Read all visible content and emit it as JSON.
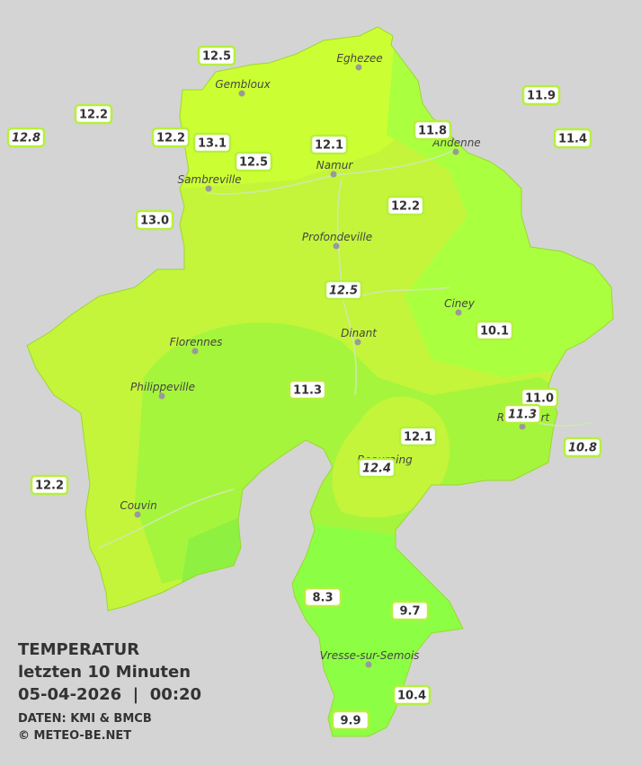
{
  "header": {
    "title": "TEMPERATUR",
    "period": "letzten 10 Minuten",
    "datetime": "05-04-2026  |  00:20",
    "source": "DATEN: KMI & BMCB",
    "copyright": "© METEO-BE.NET"
  },
  "cities": [
    "Eghezee",
    "Gembloux",
    "Andenne",
    "Namur",
    "Sambreville",
    "Profondeville",
    "Ciney",
    "Dinant",
    "Florennes",
    "Philippeville",
    "Rochefort",
    "Beauraing",
    "Couvin",
    "Vresse-sur-Semois"
  ],
  "stations": [
    {
      "value": "12.5",
      "italic": false
    },
    {
      "value": "12.2",
      "italic": false
    },
    {
      "value": "12.8",
      "italic": true
    },
    {
      "value": "12.2",
      "italic": false
    },
    {
      "value": "13.1",
      "italic": false
    },
    {
      "value": "12.5",
      "italic": false
    },
    {
      "value": "12.1",
      "italic": false
    },
    {
      "value": "11.8",
      "italic": false
    },
    {
      "value": "11.9",
      "italic": false
    },
    {
      "value": "11.4",
      "italic": false
    },
    {
      "value": "13.0",
      "italic": false
    },
    {
      "value": "12.2",
      "italic": false
    },
    {
      "value": "12.5",
      "italic": true
    },
    {
      "value": "10.1",
      "italic": false
    },
    {
      "value": "11.3",
      "italic": false
    },
    {
      "value": "11.0",
      "italic": false
    },
    {
      "value": "11.3",
      "italic": true
    },
    {
      "value": "12.1",
      "italic": false
    },
    {
      "value": "10.8",
      "italic": true
    },
    {
      "value": "12.4",
      "italic": true
    },
    {
      "value": "12.2",
      "italic": false
    },
    {
      "value": "8.3",
      "italic": false
    },
    {
      "value": "9.7",
      "italic": false
    },
    {
      "value": "10.4",
      "italic": false
    },
    {
      "value": "9.9",
      "italic": false
    }
  ]
}
